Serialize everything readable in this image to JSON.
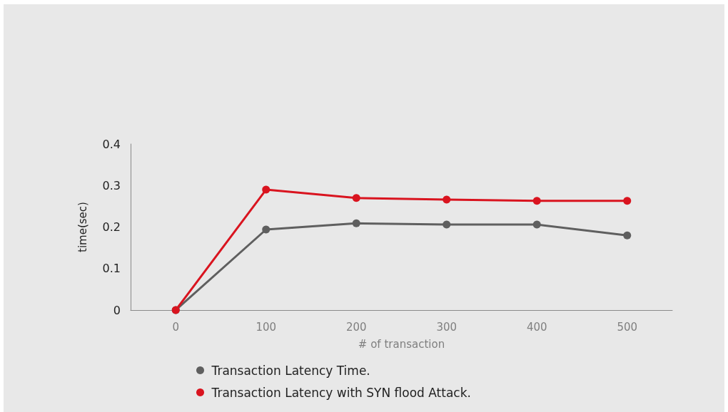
{
  "chart_data": {
    "type": "line",
    "xlabel": "# of transaction",
    "ylabel": "time(sec)",
    "categories": [
      "0",
      "100",
      "200",
      "300",
      "400",
      "500"
    ],
    "series": [
      {
        "name": "Transaction Latency Time.",
        "color": "#5f5f5f",
        "values": [
          0,
          0.194,
          0.209,
          0.206,
          0.206,
          0.18
        ]
      },
      {
        "name": "Transaction Latency with SYN flood Attack.",
        "color": "#d9141f",
        "values": [
          0,
          0.29,
          0.27,
          0.266,
          0.263,
          0.263
        ]
      }
    ],
    "ylim": [
      0,
      0.4
    ],
    "yticks": [
      0,
      0.1,
      0.2,
      0.3,
      0.4
    ],
    "grid": false,
    "legend": "bottom",
    "marker": "circle",
    "line_style": "solid"
  }
}
